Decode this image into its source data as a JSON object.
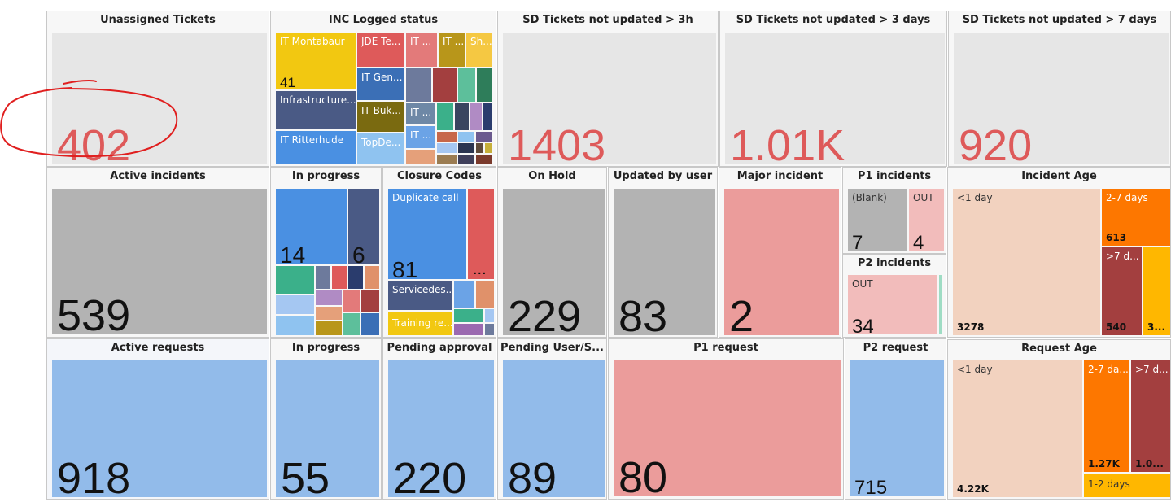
{
  "colors": {
    "tile_bg": "#e6e6e6",
    "gray": "#b3b3b3",
    "salmon": "#eb9c9b",
    "blue": "#92bbea",
    "pink": "#f2bcbb",
    "red_text": "#de5a5a",
    "annotation": "#e01f1f"
  },
  "row1": {
    "unassigned": {
      "title": "Unassigned Tickets",
      "value": "402"
    },
    "inc_logged": {
      "title": "INC Logged status",
      "cells": {
        "montabaur": "IT Montabaur",
        "montabaur_value": "41",
        "infrastructure": "Infrastructure...",
        "ritterhude": "IT Ritterhude",
        "jde": "JDE Te...",
        "it_a": "IT ...",
        "it_b": "IT ...",
        "sh": "Sh...",
        "gen": "IT Gen...",
        "buk": "IT Buk...",
        "topde": "TopDe...",
        "it_c": "IT ...",
        "it_d": "IT ..."
      }
    },
    "sd3h": {
      "title": "SD Tickets not updated > 3h",
      "value": "1403"
    },
    "sd3d": {
      "title": "SD Tickets not updated > 3 days",
      "value": "1.01K"
    },
    "sd7d": {
      "title": "SD Tickets not updated > 7 days",
      "value": "920"
    }
  },
  "row2": {
    "active_incidents": {
      "title": "Active incidents",
      "value": "539"
    },
    "in_progress": {
      "title": "In progress",
      "v1": "14",
      "v2": "6"
    },
    "closure": {
      "title": "Closure Codes",
      "duplicate": "Duplicate call",
      "duplicate_value": "81",
      "more": "...",
      "servicedesk": "Servicedes...",
      "training": "Training re..."
    },
    "on_hold": {
      "title": "On Hold",
      "value": "229"
    },
    "updated_by_user": {
      "title": "Updated by user",
      "value": "83"
    },
    "major_incident": {
      "title": "Major incident",
      "value": "2"
    },
    "p1_incidents": {
      "title": "P1 incidents",
      "blank_label": "(Blank)",
      "blank_value": "7",
      "out_label": "OUT",
      "out_value": "4"
    },
    "p2_incidents": {
      "title": "P2 incidents",
      "out_label": "OUT",
      "out_value": "34"
    },
    "incident_age": {
      "title": "Incident Age",
      "lt1": "<1 day",
      "lt1_value": "3278",
      "d27": "2-7 days",
      "d27_value": "613",
      "gt7": ">7 d...",
      "gt7_value": "540",
      "other_value": "3..."
    }
  },
  "row3": {
    "active_requests": {
      "title": "Active requests",
      "value": "918"
    },
    "in_progress": {
      "title": "In progress",
      "value": "55"
    },
    "pending_approval": {
      "title": "Pending approval",
      "value": "220"
    },
    "pending_user": {
      "title": "Pending User/S...",
      "value": "89"
    },
    "p1_request": {
      "title": "P1 request",
      "value": "80"
    },
    "p2_request": {
      "title": "P2 request",
      "value": "715"
    },
    "request_age": {
      "title": "Request Age",
      "lt1": "<1 day",
      "lt1_value": "4.22K",
      "d27": "2-7 da...",
      "d27_value": "1.27K",
      "gt7": ">7 d...",
      "gt7_value": "1.0...",
      "d12": "1-2 days"
    }
  }
}
